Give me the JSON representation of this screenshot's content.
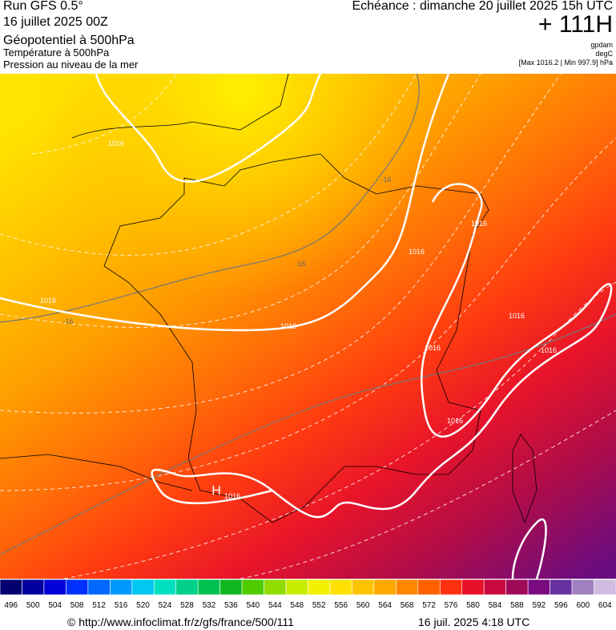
{
  "header": {
    "run": "Run GFS 0.5°",
    "date": "16 juillet 2025 00Z",
    "title": "Géopotentiel à 500hPa",
    "line2": "Température à 500hPa",
    "line3": "Pression au niveau de la mer",
    "echeance": "Echéance : dimanche 20 juillet 2025 15h UTC",
    "lead": "+ 111H",
    "unit1": "gpdam",
    "unit2": "degC",
    "unit3": "[Max 1016.2 | Min 997.9] hPa"
  },
  "map": {
    "labels": [
      "1016",
      "1016",
      "1016",
      "1016",
      "1016",
      "1016",
      "1016",
      "1016",
      "1016",
      "1016",
      "-16",
      "-16",
      "-16",
      "H"
    ]
  },
  "colorbar": {
    "ticks": [
      496,
      500,
      504,
      508,
      512,
      516,
      520,
      524,
      528,
      532,
      536,
      540,
      544,
      548,
      552,
      556,
      560,
      564,
      568,
      572,
      576,
      580,
      584,
      588,
      592,
      596,
      600,
      604
    ],
    "colors": [
      "#000070",
      "#0000a0",
      "#0000d8",
      "#0030ff",
      "#0068ff",
      "#0098ff",
      "#00c8f0",
      "#00e0c0",
      "#00d088",
      "#00c050",
      "#10b820",
      "#50cc00",
      "#90dc00",
      "#c8ec00",
      "#f0f000",
      "#ffe000",
      "#ffc400",
      "#ffa800",
      "#ff8800",
      "#ff6000",
      "#ff3010",
      "#e81028",
      "#c80840",
      "#a00858",
      "#7a0a80",
      "#6830a0",
      "#a080c0",
      "#d0bce0"
    ]
  },
  "footer": {
    "url": "© http://www.infoclimat.fr/z/gfs/france/500/111",
    "stamp": "16 juil. 2025  4:18 UTC"
  }
}
